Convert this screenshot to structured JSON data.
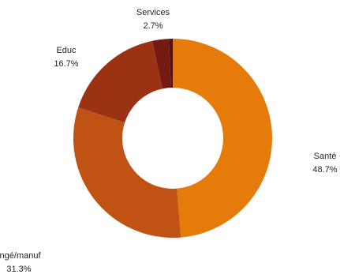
{
  "chart_data": {
    "type": "pie",
    "variant": "donut",
    "title": "",
    "legend": "none",
    "slices": [
      {
        "label": "Santé",
        "value": 48.7,
        "pct_label": "48.7%",
        "color": "#e57b0a"
      },
      {
        "label": "Ingé/manuf",
        "value": 31.3,
        "pct_label": "31.3%",
        "color": "#c05314"
      },
      {
        "label": "Educ",
        "value": 16.7,
        "pct_label": "16.7%",
        "color": "#9b3214"
      },
      {
        "label": "Services",
        "value": 2.7,
        "pct_label": "2.7%",
        "color": "#741a13"
      },
      {
        "label": "",
        "value": 0.6,
        "pct_label": "",
        "color": "#5a0f10"
      }
    ]
  }
}
